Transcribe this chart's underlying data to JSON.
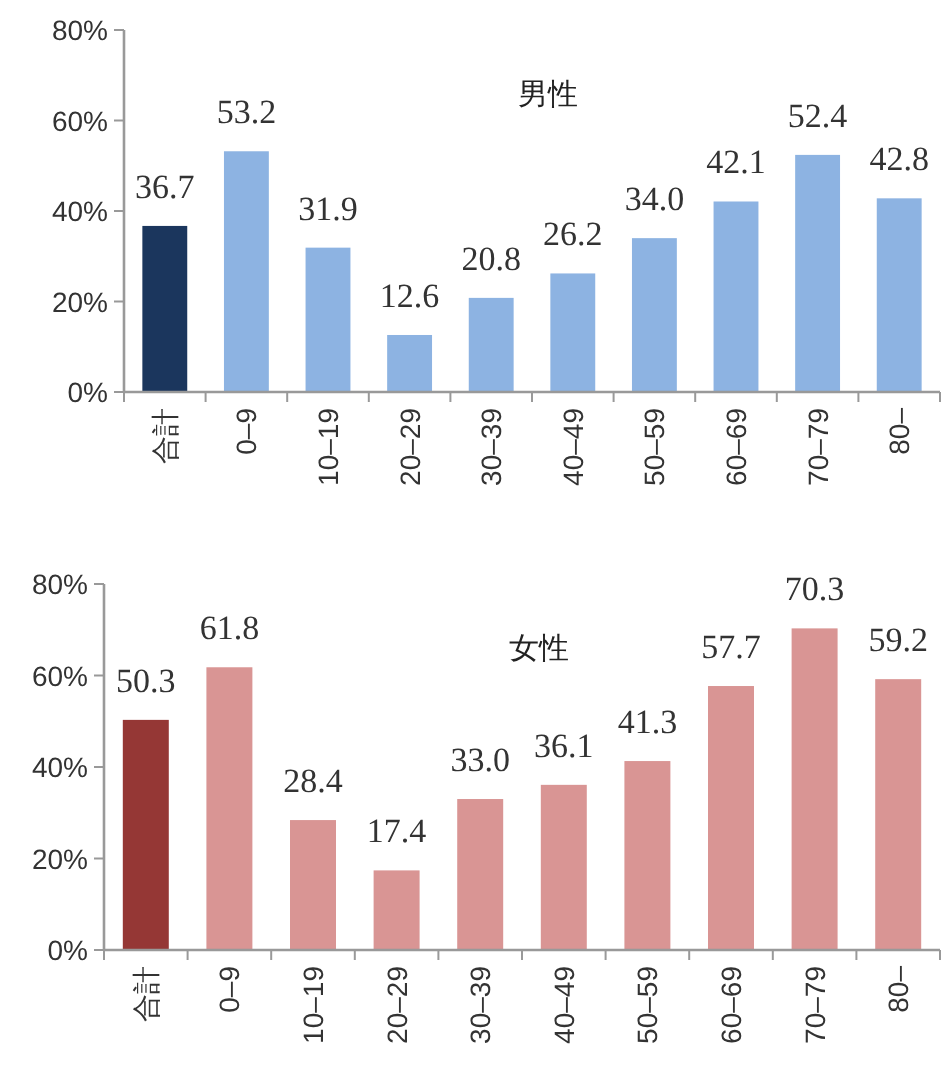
{
  "chart_data": [
    {
      "type": "bar",
      "title": "男性",
      "categories": [
        "合計",
        "0–9",
        "10–19",
        "20–29",
        "30–39",
        "40–49",
        "50–59",
        "60–69",
        "70–79",
        "80–"
      ],
      "values": [
        36.7,
        53.2,
        31.9,
        12.6,
        20.8,
        26.2,
        34.0,
        42.1,
        52.4,
        42.8
      ],
      "colors": [
        "#1b365d",
        "#8db3e2",
        "#8db3e2",
        "#8db3e2",
        "#8db3e2",
        "#8db3e2",
        "#8db3e2",
        "#8db3e2",
        "#8db3e2",
        "#8db3e2"
      ],
      "value_labels": [
        "36.7",
        "53.2",
        "31.9",
        "12.6",
        "20.8",
        "26.2",
        "34.0",
        "42.1",
        "52.4",
        "42.8"
      ],
      "ylim": [
        0,
        80
      ],
      "yticks": [
        {
          "value": 0,
          "label": "0%"
        },
        {
          "value": 20,
          "label": "20%"
        },
        {
          "value": 40,
          "label": "40%"
        },
        {
          "value": 60,
          "label": "60%"
        },
        {
          "value": 80,
          "label": "80%"
        }
      ]
    },
    {
      "type": "bar",
      "title": "女性",
      "categories": [
        "合計",
        "0–9",
        "10–19",
        "20–29",
        "30–39",
        "40–49",
        "50–59",
        "60–69",
        "70–79",
        "80–"
      ],
      "values": [
        50.3,
        61.8,
        28.4,
        17.4,
        33.0,
        36.1,
        41.3,
        57.7,
        70.3,
        59.2
      ],
      "colors": [
        "#953735",
        "#d99594",
        "#d99594",
        "#d99594",
        "#d99594",
        "#d99594",
        "#d99594",
        "#d99594",
        "#d99594",
        "#d99594"
      ],
      "value_labels": [
        "50.3",
        "61.8",
        "28.4",
        "17.4",
        "33.0",
        "36.1",
        "41.3",
        "57.7",
        "70.3",
        "59.2"
      ],
      "ylim": [
        0,
        80
      ],
      "yticks": [
        {
          "value": 0,
          "label": "0%"
        },
        {
          "value": 20,
          "label": "20%"
        },
        {
          "value": 40,
          "label": "40%"
        },
        {
          "value": 60,
          "label": "60%"
        },
        {
          "value": 80,
          "label": "80%"
        }
      ]
    }
  ]
}
